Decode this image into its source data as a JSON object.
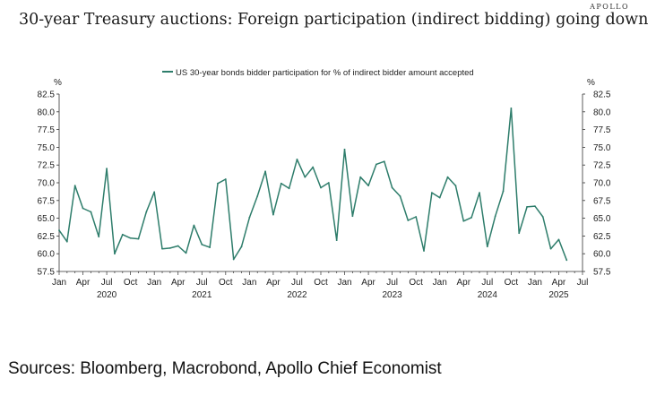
{
  "brand": "APOLLO",
  "title": "30-year Treasury auctions: Foreign participation (indirect bidding) going down",
  "source": "Sources: Bloomberg, Macrobond, Apollo Chief Economist",
  "chart_data": {
    "type": "line",
    "title": "30-year Treasury auctions: Foreign participation (indirect bidding) going down",
    "unit_left": "%",
    "unit_right": "%",
    "ylim": [
      57.5,
      82.5
    ],
    "y_ticks": [
      57.5,
      60.0,
      62.5,
      65.0,
      67.5,
      70.0,
      72.5,
      75.0,
      77.5,
      80.0,
      82.5
    ],
    "y_tick_labels": [
      "57.5",
      "60.0",
      "62.5",
      "65.0",
      "67.5",
      "70.0",
      "72.5",
      "75.0",
      "77.5",
      "80.0",
      "82.5"
    ],
    "x_range": [
      "2020-01",
      "2025-07"
    ],
    "x_ticks": [
      {
        "month": "2020-01",
        "label": "Jan"
      },
      {
        "month": "2020-04",
        "label": "Apr"
      },
      {
        "month": "2020-07",
        "label": "Jul"
      },
      {
        "month": "2020-10",
        "label": "Oct"
      },
      {
        "month": "2021-01",
        "label": "Jan"
      },
      {
        "month": "2021-04",
        "label": "Apr"
      },
      {
        "month": "2021-07",
        "label": "Jul"
      },
      {
        "month": "2021-10",
        "label": "Oct"
      },
      {
        "month": "2022-01",
        "label": "Jan"
      },
      {
        "month": "2022-04",
        "label": "Apr"
      },
      {
        "month": "2022-07",
        "label": "Jul"
      },
      {
        "month": "2022-10",
        "label": "Oct"
      },
      {
        "month": "2023-01",
        "label": "Jan"
      },
      {
        "month": "2023-04",
        "label": "Apr"
      },
      {
        "month": "2023-07",
        "label": "Jul"
      },
      {
        "month": "2023-10",
        "label": "Oct"
      },
      {
        "month": "2024-01",
        "label": "Jan"
      },
      {
        "month": "2024-04",
        "label": "Apr"
      },
      {
        "month": "2024-07",
        "label": "Jul"
      },
      {
        "month": "2024-10",
        "label": "Oct"
      },
      {
        "month": "2025-01",
        "label": "Jan"
      },
      {
        "month": "2025-04",
        "label": "Apr"
      },
      {
        "month": "2025-07",
        "label": "Jul"
      }
    ],
    "year_labels": [
      {
        "label": "2020",
        "center": "2020-07"
      },
      {
        "label": "2021",
        "center": "2021-07"
      },
      {
        "label": "2022",
        "center": "2022-07"
      },
      {
        "label": "2023",
        "center": "2023-07"
      },
      {
        "label": "2024",
        "center": "2024-07"
      },
      {
        "label": "2025",
        "center": "2025-04"
      }
    ],
    "grid": false,
    "legend_position": "top-center",
    "series": [
      {
        "name": "US 30-year bonds bidder participation for % of indirect bidder amount accepted",
        "color": "#2e7d6b",
        "points": [
          [
            "2020-01",
            63.3
          ],
          [
            "2020-02",
            61.7
          ],
          [
            "2020-03",
            69.6
          ],
          [
            "2020-04",
            66.4
          ],
          [
            "2020-05",
            65.9
          ],
          [
            "2020-06",
            62.4
          ],
          [
            "2020-07",
            72.0
          ],
          [
            "2020-08",
            60.0
          ],
          [
            "2020-09",
            62.7
          ],
          [
            "2020-10",
            62.2
          ],
          [
            "2020-11",
            62.1
          ],
          [
            "2020-12",
            65.9
          ],
          [
            "2021-01",
            68.7
          ],
          [
            "2021-02",
            60.7
          ],
          [
            "2021-03",
            60.8
          ],
          [
            "2021-04",
            61.1
          ],
          [
            "2021-05",
            60.1
          ],
          [
            "2021-06",
            64.0
          ],
          [
            "2021-07",
            61.3
          ],
          [
            "2021-08",
            60.9
          ],
          [
            "2021-09",
            69.9
          ],
          [
            "2021-10",
            70.5
          ],
          [
            "2021-11",
            59.2
          ],
          [
            "2021-12",
            61.0
          ],
          [
            "2022-01",
            65.1
          ],
          [
            "2022-02",
            68.1
          ],
          [
            "2022-03",
            71.6
          ],
          [
            "2022-04",
            65.5
          ],
          [
            "2022-05",
            69.9
          ],
          [
            "2022-06",
            69.2
          ],
          [
            "2022-07",
            73.3
          ],
          [
            "2022-08",
            70.8
          ],
          [
            "2022-09",
            72.2
          ],
          [
            "2022-10",
            69.3
          ],
          [
            "2022-11",
            70.0
          ],
          [
            "2022-12",
            61.9
          ],
          [
            "2023-01",
            74.7
          ],
          [
            "2023-02",
            65.3
          ],
          [
            "2023-03",
            70.8
          ],
          [
            "2023-04",
            69.6
          ],
          [
            "2023-05",
            72.6
          ],
          [
            "2023-06",
            73.0
          ],
          [
            "2023-07",
            69.3
          ],
          [
            "2023-08",
            68.1
          ],
          [
            "2023-09",
            64.7
          ],
          [
            "2023-10",
            65.2
          ],
          [
            "2023-11",
            60.4
          ],
          [
            "2023-12",
            68.6
          ],
          [
            "2024-01",
            67.9
          ],
          [
            "2024-02",
            70.8
          ],
          [
            "2024-03",
            69.6
          ],
          [
            "2024-04",
            64.6
          ],
          [
            "2024-05",
            65.1
          ],
          [
            "2024-06",
            68.6
          ],
          [
            "2024-07",
            61.0
          ],
          [
            "2024-08",
            65.3
          ],
          [
            "2024-09",
            68.8
          ],
          [
            "2024-10",
            80.5
          ],
          [
            "2024-11",
            62.9
          ],
          [
            "2024-12",
            66.6
          ],
          [
            "2025-01",
            66.7
          ],
          [
            "2025-02",
            65.2
          ],
          [
            "2025-03",
            60.7
          ],
          [
            "2025-04",
            62.0
          ],
          [
            "2025-05",
            59.1
          ]
        ]
      }
    ]
  }
}
